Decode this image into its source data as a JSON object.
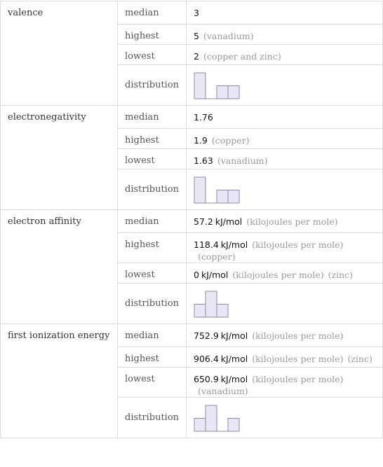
{
  "rows": [
    {
      "property": "valence",
      "entries": [
        {
          "label": "median",
          "value": "3"
        },
        {
          "label": "highest",
          "value": "5",
          "notes": [
            "(vanadium)"
          ]
        },
        {
          "label": "lowest",
          "value": "2",
          "notes": [
            "(copper and zinc)"
          ]
        },
        {
          "label": "distribution",
          "histogram": [
            2,
            0,
            1,
            1
          ]
        }
      ]
    },
    {
      "property": "electronegativity",
      "entries": [
        {
          "label": "median",
          "value": "1.76"
        },
        {
          "label": "highest",
          "value": "1.9",
          "notes": [
            "(copper)"
          ]
        },
        {
          "label": "lowest",
          "value": "1.63",
          "notes": [
            "(vanadium)"
          ]
        },
        {
          "label": "distribution",
          "histogram": [
            2,
            0,
            1,
            1
          ]
        }
      ]
    },
    {
      "property": "electron affinity",
      "entries": [
        {
          "label": "median",
          "value": "57.2",
          "unit": "kJ/mol",
          "notes": [
            "(kilojoules per mole)"
          ]
        },
        {
          "label": "highest",
          "value": "118.4",
          "unit": "kJ/mol",
          "notes": [
            "(kilojoules per mole)",
            "(copper)"
          ]
        },
        {
          "label": "lowest",
          "value": "0",
          "unit": "kJ/mol",
          "notes": [
            "(kilojoules per mole)",
            "(zinc)"
          ]
        },
        {
          "label": "distribution",
          "histogram": [
            1,
            2,
            1
          ]
        }
      ]
    },
    {
      "property": "first ionization energy",
      "entries": [
        {
          "label": "median",
          "value": "752.9",
          "unit": "kJ/mol",
          "notes": [
            "(kilojoules per mole)"
          ]
        },
        {
          "label": "highest",
          "value": "906.4",
          "unit": "kJ/mol",
          "notes": [
            "(kilojoules per mole)",
            "(zinc)"
          ]
        },
        {
          "label": "lowest",
          "value": "650.9",
          "unit": "kJ/mol",
          "notes": [
            "(kilojoules per mole)",
            "(vanadium)"
          ]
        },
        {
          "label": "distribution",
          "histogram": [
            1,
            2,
            0,
            1
          ]
        }
      ]
    }
  ]
}
